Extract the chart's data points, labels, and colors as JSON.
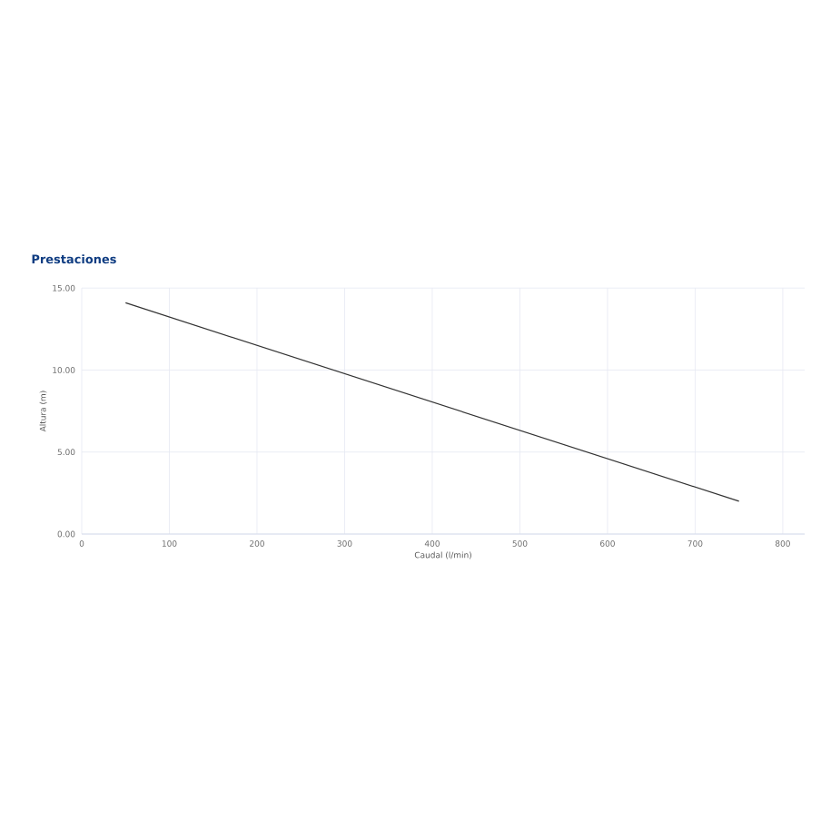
{
  "chart_data": {
    "type": "line",
    "title": "Prestaciones",
    "xlabel": "Caudal (l/min)",
    "ylabel": "Altura (m)",
    "x": [
      50,
      750
    ],
    "series": [
      {
        "color": "#333333",
        "values": [
          14.1,
          2.0
        ]
      }
    ],
    "xlim": [
      0,
      825
    ],
    "ylim": [
      0,
      15
    ],
    "xticks": [
      0,
      100,
      200,
      300,
      400,
      500,
      600,
      700,
      800
    ],
    "yticks": [
      {
        "value": 0,
        "label": "0.00"
      },
      {
        "value": 5,
        "label": "5.00"
      },
      {
        "value": 10,
        "label": "10.00"
      },
      {
        "value": 15,
        "label": "15.00"
      }
    ],
    "grid": true
  }
}
